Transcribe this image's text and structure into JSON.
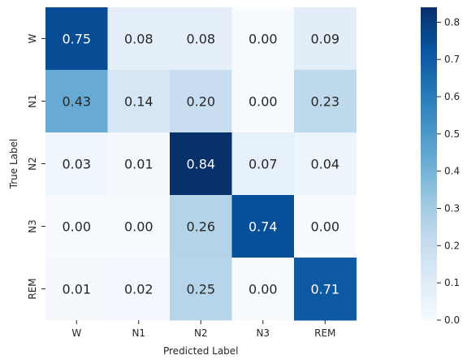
{
  "chart_data": {
    "type": "heatmap",
    "title": "",
    "xlabel": "Predicted Label",
    "ylabel": "True Label",
    "x_categories": [
      "W",
      "N1",
      "N2",
      "N3",
      "REM"
    ],
    "y_categories": [
      "W",
      "N1",
      "N2",
      "N3",
      "REM"
    ],
    "values": [
      [
        0.75,
        0.08,
        0.08,
        0.0,
        0.09
      ],
      [
        0.43,
        0.14,
        0.2,
        0.0,
        0.23
      ],
      [
        0.03,
        0.01,
        0.84,
        0.07,
        0.04
      ],
      [
        0.0,
        0.0,
        0.26,
        0.74,
        0.0
      ],
      [
        0.01,
        0.02,
        0.25,
        0.0,
        0.71
      ]
    ],
    "cell_labels": [
      [
        "0.75",
        "0.08",
        "0.08",
        "0.00",
        "0.09"
      ],
      [
        "0.43",
        "0.14",
        "0.20",
        "0.00",
        "0.23"
      ],
      [
        "0.03",
        "0.01",
        "0.84",
        "0.07",
        "0.04"
      ],
      [
        "0.00",
        "0.00",
        "0.26",
        "0.74",
        "0.00"
      ],
      [
        "0.01",
        "0.02",
        "0.25",
        "0.00",
        "0.71"
      ]
    ],
    "colorbar": {
      "min": 0.0,
      "max": 0.84,
      "ticks": [
        0.0,
        0.1,
        0.2,
        0.3,
        0.4,
        0.5,
        0.6,
        0.7,
        0.8
      ],
      "tick_labels": [
        "0.0",
        "0.1",
        "0.2",
        "0.3",
        "0.4",
        "0.5",
        "0.6",
        "0.7",
        "0.8"
      ]
    },
    "colormap": "Blues",
    "colormap_stops": [
      "#f7fbff",
      "#deebf7",
      "#c6dbef",
      "#9ecae1",
      "#6baed6",
      "#4292c6",
      "#2171b5",
      "#08519c",
      "#08306b"
    ],
    "text_colors": {
      "light": "#ffffff",
      "dark": "#262626"
    }
  }
}
